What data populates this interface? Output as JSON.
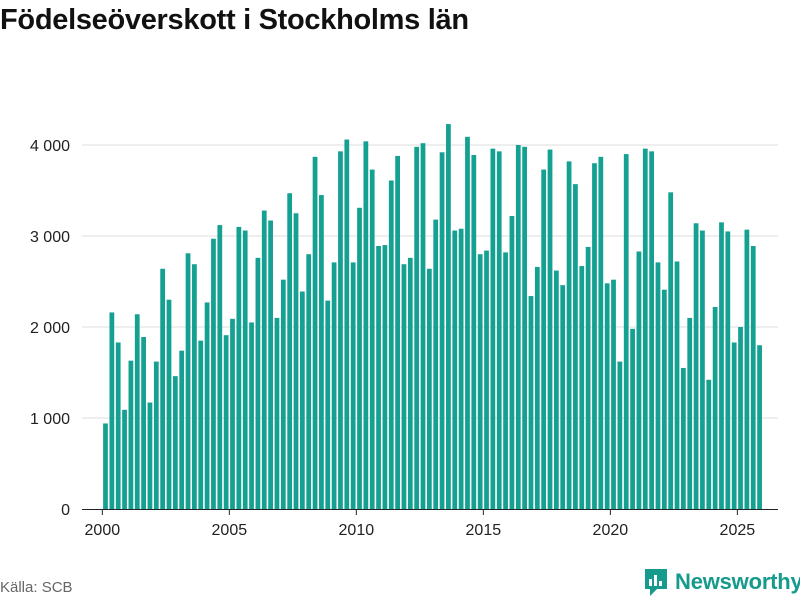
{
  "title": "Födelseöverskott i Stockholms län",
  "source": "Källa: SCB",
  "brand": {
    "name": "Newsworthy",
    "icon": "newsworthy-logo-icon",
    "color": "#159a8c"
  },
  "chart_data": {
    "type": "bar",
    "title": "Födelseöverskott i Stockholms län",
    "xlabel": "",
    "ylabel": "",
    "bar_color": "#15a192",
    "grid": true,
    "ylim": [
      0,
      4300
    ],
    "xlim": [
      1999.2,
      2026.6
    ],
    "y_ticks": [
      {
        "value": 0,
        "label": "0"
      },
      {
        "value": 1000,
        "label": "1 000"
      },
      {
        "value": 2000,
        "label": "2 000"
      },
      {
        "value": 3000,
        "label": "3 000"
      },
      {
        "value": 4000,
        "label": "4 000"
      }
    ],
    "x_ticks": [
      {
        "value": 2000,
        "label": "2000"
      },
      {
        "value": 2005,
        "label": "2005"
      },
      {
        "value": 2010,
        "label": "2010"
      },
      {
        "value": 2015,
        "label": "2015"
      },
      {
        "value": 2020,
        "label": "2020"
      },
      {
        "value": 2025,
        "label": "2025"
      }
    ],
    "start_year": 2000,
    "period": "quarter",
    "values": [
      940,
      2160,
      1830,
      1090,
      1630,
      2140,
      1890,
      1170,
      1620,
      2640,
      2300,
      1460,
      1740,
      2810,
      2690,
      1850,
      2270,
      2970,
      3120,
      1910,
      2090,
      3100,
      3060,
      2050,
      2760,
      3280,
      3170,
      2100,
      2520,
      3470,
      3250,
      2390,
      2800,
      3870,
      3450,
      2290,
      2710,
      3930,
      4060,
      2710,
      3310,
      4040,
      3730,
      2890,
      2900,
      3610,
      3880,
      2690,
      2760,
      3980,
      4020,
      2640,
      3180,
      3920,
      4230,
      3060,
      3080,
      4090,
      3890,
      2800,
      2840,
      3960,
      3930,
      2820,
      3220,
      4000,
      3980,
      2340,
      2660,
      3730,
      3950,
      2620,
      2460,
      3820,
      3570,
      2670,
      2880,
      3800,
      3870,
      2480,
      2520,
      1620,
      3900,
      1980,
      2830,
      3960,
      3930,
      2710,
      2410,
      3480,
      2720,
      1550,
      2100,
      3140,
      3060,
      1420,
      2220,
      3150,
      3050,
      1830,
      2000,
      3070,
      2890,
      1800
    ]
  }
}
